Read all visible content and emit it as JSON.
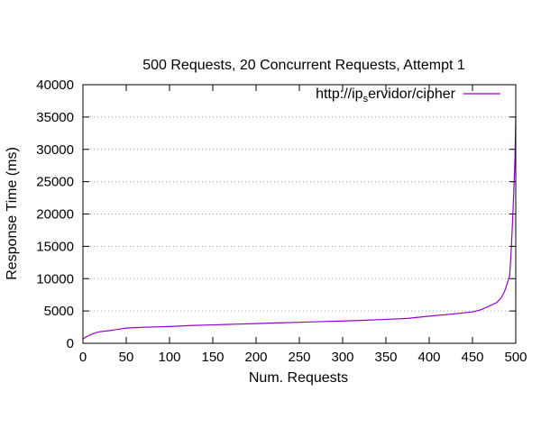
{
  "chart_data": {
    "type": "line",
    "title": "500 Requests, 20 Concurrent Requests, Attempt 1",
    "xlabel": "Num. Requests",
    "ylabel": "Response Time (ms)",
    "xlim": [
      0,
      500
    ],
    "ylim": [
      0,
      40000
    ],
    "xticks": [
      0,
      50,
      100,
      150,
      200,
      250,
      300,
      350,
      400,
      450,
      500
    ],
    "yticks": [
      0,
      5000,
      10000,
      15000,
      20000,
      25000,
      30000,
      35000,
      40000
    ],
    "grid": "horizontal dotted",
    "legend_position": "top-right",
    "series": [
      {
        "name": "http://ip_servidor/cipher",
        "legend_parts": {
          "prefix": "http://ip",
          "subscript": "s",
          "suffix": "ervidor/cipher"
        },
        "color": "#9400d3",
        "x": [
          0,
          5,
          10,
          15,
          20,
          30,
          40,
          50,
          60,
          75,
          100,
          125,
          150,
          175,
          200,
          225,
          250,
          275,
          300,
          325,
          350,
          375,
          400,
          425,
          450,
          460,
          470,
          478,
          483,
          487,
          490,
          493,
          495,
          497,
          499,
          500
        ],
        "y": [
          700,
          1100,
          1400,
          1650,
          1800,
          1950,
          2150,
          2350,
          2420,
          2500,
          2600,
          2750,
          2850,
          2950,
          3050,
          3150,
          3250,
          3350,
          3450,
          3550,
          3700,
          3850,
          4200,
          4500,
          4850,
          5200,
          5800,
          6300,
          7000,
          8000,
          9200,
          10500,
          15000,
          21000,
          28000,
          35000
        ]
      }
    ]
  }
}
